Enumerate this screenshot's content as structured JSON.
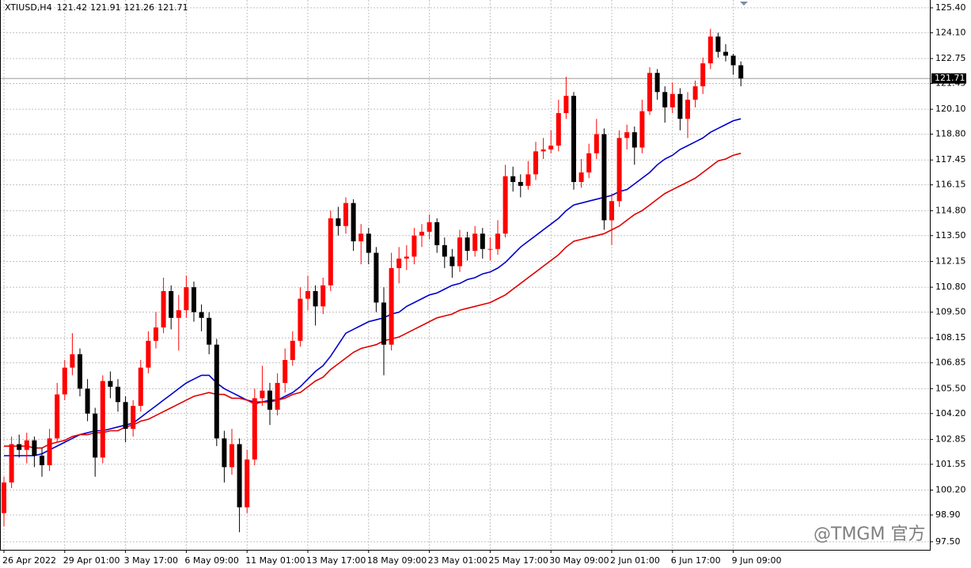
{
  "chart_data": {
    "type": "candlestick",
    "symbol": "XTIUSD,H4",
    "ohlc": [
      121.42,
      121.91,
      121.26,
      121.71
    ],
    "last_price": 121.71,
    "watermark": "@TMGM 官方",
    "up_color": "#ff0000",
    "down_color": "#000000",
    "grid": true,
    "ylim": [
      97.08,
      125.81
    ],
    "yticks": [
      {
        "value": 125.4,
        "label": "125.40"
      },
      {
        "value": 124.1,
        "label": "124.10"
      },
      {
        "value": 122.75,
        "label": "122.75"
      },
      {
        "value": 121.45,
        "label": "121.45"
      },
      {
        "value": 120.1,
        "label": "120.10"
      },
      {
        "value": 118.8,
        "label": "118.80"
      },
      {
        "value": 117.45,
        "label": "117.45"
      },
      {
        "value": 116.15,
        "label": "116.15"
      },
      {
        "value": 114.8,
        "label": "114.80"
      },
      {
        "value": 113.5,
        "label": "113.50"
      },
      {
        "value": 112.15,
        "label": "112.15"
      },
      {
        "value": 110.8,
        "label": "110.80"
      },
      {
        "value": 109.5,
        "label": "109.50"
      },
      {
        "value": 108.15,
        "label": "108.15"
      },
      {
        "value": 106.85,
        "label": "106.85"
      },
      {
        "value": 105.5,
        "label": "105.50"
      },
      {
        "value": 104.2,
        "label": "104.20"
      },
      {
        "value": 102.85,
        "label": "102.85"
      },
      {
        "value": 101.55,
        "label": "101.55"
      },
      {
        "value": 100.2,
        "label": "100.20"
      },
      {
        "value": 98.9,
        "label": "98.90"
      },
      {
        "value": 97.5,
        "label": "97.50"
      }
    ],
    "categories": [
      "26 Apr 2022",
      null,
      null,
      null,
      null,
      null,
      null,
      null,
      "29 Apr 01:00",
      null,
      null,
      null,
      null,
      null,
      null,
      null,
      "3 May 17:00",
      null,
      null,
      null,
      null,
      null,
      null,
      null,
      "6 May 09:00",
      null,
      null,
      null,
      null,
      null,
      null,
      null,
      "11 May 01:00",
      null,
      null,
      null,
      null,
      null,
      null,
      null,
      "13 May 17:00",
      null,
      null,
      null,
      null,
      null,
      null,
      null,
      "18 May 09:00",
      null,
      null,
      null,
      null,
      null,
      null,
      null,
      "23 May 01:00",
      null,
      null,
      null,
      null,
      null,
      null,
      null,
      "25 May 17:00",
      null,
      null,
      null,
      null,
      null,
      null,
      null,
      "30 May 09:00",
      null,
      null,
      null,
      null,
      null,
      null,
      null,
      "2 Jun 01:00",
      null,
      null,
      null,
      null,
      null,
      null,
      null,
      "6 Jun 17:00",
      null,
      null,
      null,
      null,
      null,
      null,
      null,
      "9 Jun 09:00",
      null
    ],
    "candles": [
      [
        99.0,
        100.9,
        98.3,
        100.6
      ],
      [
        100.6,
        103.0,
        100.3,
        102.6
      ],
      [
        102.6,
        103.1,
        101.9,
        102.3
      ],
      [
        102.3,
        103.2,
        101.6,
        102.8
      ],
      [
        102.8,
        103.0,
        101.4,
        102.0
      ],
      [
        102.0,
        102.4,
        100.9,
        101.5
      ],
      [
        101.5,
        103.4,
        101.2,
        102.9
      ],
      [
        102.9,
        105.8,
        102.7,
        105.2
      ],
      [
        105.2,
        107.0,
        104.9,
        106.6
      ],
      [
        106.6,
        108.4,
        106.2,
        107.3
      ],
      [
        107.3,
        107.6,
        105.1,
        105.5
      ],
      [
        105.5,
        106.0,
        103.8,
        104.2
      ],
      [
        104.2,
        104.5,
        100.9,
        101.9
      ],
      [
        101.9,
        106.2,
        101.6,
        105.9
      ],
      [
        105.9,
        106.4,
        105.0,
        105.6
      ],
      [
        105.6,
        106.0,
        104.3,
        104.8
      ],
      [
        104.8,
        105.1,
        102.7,
        103.4
      ],
      [
        103.4,
        104.9,
        103.0,
        104.6
      ],
      [
        104.6,
        107.0,
        104.3,
        106.6
      ],
      [
        106.6,
        108.5,
        106.3,
        108.0
      ],
      [
        108.0,
        109.5,
        107.6,
        108.7
      ],
      [
        108.7,
        111.3,
        108.4,
        110.6
      ],
      [
        110.6,
        110.9,
        108.6,
        109.2
      ],
      [
        109.2,
        110.4,
        107.5,
        109.6
      ],
      [
        109.6,
        111.4,
        109.2,
        110.8
      ],
      [
        110.8,
        111.1,
        109.0,
        109.5
      ],
      [
        109.5,
        109.9,
        108.5,
        109.2
      ],
      [
        109.2,
        109.5,
        107.3,
        107.8
      ],
      [
        107.8,
        108.1,
        102.5,
        102.9
      ],
      [
        102.9,
        103.3,
        100.6,
        101.4
      ],
      [
        101.4,
        103.4,
        101.0,
        102.6
      ],
      [
        102.6,
        102.9,
        98.0,
        99.3
      ],
      [
        99.3,
        102.3,
        99.0,
        101.8
      ],
      [
        101.8,
        105.5,
        101.5,
        105.0
      ],
      [
        105.0,
        106.7,
        104.6,
        105.4
      ],
      [
        105.4,
        105.8,
        103.6,
        104.4
      ],
      [
        104.4,
        106.3,
        104.1,
        105.8
      ],
      [
        105.8,
        107.6,
        105.3,
        107.0
      ],
      [
        107.0,
        108.5,
        106.7,
        108.0
      ],
      [
        108.0,
        110.8,
        107.7,
        110.2
      ],
      [
        110.2,
        111.4,
        109.6,
        110.6
      ],
      [
        110.6,
        110.9,
        108.8,
        109.8
      ],
      [
        109.8,
        111.3,
        109.4,
        110.9
      ],
      [
        110.9,
        114.8,
        110.6,
        114.4
      ],
      [
        114.4,
        115.0,
        113.5,
        114.0
      ],
      [
        114.0,
        115.5,
        113.6,
        115.2
      ],
      [
        115.2,
        115.4,
        112.7,
        113.2
      ],
      [
        113.2,
        114.1,
        112.0,
        113.6
      ],
      [
        113.6,
        113.9,
        112.0,
        112.6
      ],
      [
        112.6,
        112.9,
        109.5,
        110.0
      ],
      [
        110.0,
        110.8,
        106.2,
        107.8
      ],
      [
        107.8,
        112.6,
        107.5,
        111.8
      ],
      [
        111.8,
        112.9,
        111.0,
        112.3
      ],
      [
        112.3,
        113.0,
        111.7,
        112.4
      ],
      [
        112.4,
        113.9,
        112.0,
        113.5
      ],
      [
        113.5,
        114.1,
        112.9,
        113.7
      ],
      [
        113.7,
        114.6,
        113.3,
        114.2
      ],
      [
        114.2,
        114.4,
        112.6,
        113.0
      ],
      [
        113.0,
        113.4,
        111.8,
        112.4
      ],
      [
        112.4,
        112.8,
        111.3,
        111.9
      ],
      [
        111.9,
        113.8,
        111.6,
        113.4
      ],
      [
        113.4,
        113.7,
        112.2,
        112.7
      ],
      [
        112.7,
        114.0,
        112.4,
        113.6
      ],
      [
        113.6,
        113.9,
        112.3,
        112.8
      ],
      [
        112.8,
        113.4,
        112.2,
        112.8
      ],
      [
        112.8,
        114.3,
        112.5,
        113.6
      ],
      [
        113.6,
        117.2,
        113.4,
        116.6
      ],
      [
        116.6,
        117.1,
        115.8,
        116.3
      ],
      [
        116.3,
        116.7,
        115.5,
        116.1
      ],
      [
        116.1,
        117.4,
        115.9,
        116.7
      ],
      [
        116.7,
        118.4,
        116.4,
        117.9
      ],
      [
        117.9,
        118.6,
        117.5,
        118.0
      ],
      [
        118.0,
        119.0,
        117.8,
        118.2
      ],
      [
        118.2,
        120.6,
        117.9,
        119.9
      ],
      [
        119.9,
        121.8,
        119.6,
        120.8
      ],
      [
        120.8,
        121.0,
        115.9,
        116.3
      ],
      [
        116.3,
        117.5,
        116.0,
        116.8
      ],
      [
        116.8,
        118.3,
        116.5,
        117.8
      ],
      [
        117.8,
        119.6,
        117.5,
        118.8
      ],
      [
        118.8,
        119.1,
        113.8,
        114.3
      ],
      [
        114.3,
        115.7,
        113.0,
        115.3
      ],
      [
        115.3,
        119.0,
        115.0,
        118.6
      ],
      [
        118.6,
        119.3,
        118.0,
        118.9
      ],
      [
        118.9,
        119.2,
        117.2,
        118.1
      ],
      [
        118.1,
        120.6,
        117.8,
        120.0
      ],
      [
        120.0,
        122.3,
        119.8,
        122.0
      ],
      [
        122.0,
        122.2,
        120.6,
        121.0
      ],
      [
        121.0,
        121.3,
        119.4,
        120.2
      ],
      [
        120.2,
        121.5,
        119.9,
        120.9
      ],
      [
        120.9,
        121.2,
        119.0,
        119.6
      ],
      [
        119.6,
        121.0,
        118.6,
        120.6
      ],
      [
        120.6,
        121.6,
        120.2,
        121.3
      ],
      [
        121.3,
        122.8,
        120.9,
        122.5
      ],
      [
        122.5,
        124.3,
        122.2,
        123.9
      ],
      [
        123.9,
        124.1,
        122.8,
        123.1
      ],
      [
        123.1,
        123.5,
        122.6,
        122.9
      ],
      [
        122.9,
        123.0,
        121.9,
        122.4
      ],
      [
        122.4,
        122.6,
        121.3,
        121.71
      ]
    ],
    "lines": [
      {
        "color": "#0000cc",
        "values": [
          102.0,
          102.0,
          102.0,
          102.0,
          102.0,
          102.1,
          102.3,
          102.5,
          102.7,
          102.9,
          103.1,
          103.2,
          103.3,
          103.3,
          103.4,
          103.5,
          103.6,
          103.7,
          104.0,
          104.3,
          104.6,
          104.9,
          105.2,
          105.5,
          105.8,
          106.0,
          106.2,
          106.2,
          105.8,
          105.5,
          105.3,
          105.1,
          104.9,
          104.8,
          104.8,
          104.9,
          104.9,
          105.1,
          105.3,
          105.6,
          106.0,
          106.4,
          106.7,
          107.2,
          107.8,
          108.4,
          108.6,
          108.8,
          109.0,
          109.1,
          109.2,
          109.4,
          109.5,
          109.8,
          110.0,
          110.2,
          110.4,
          110.5,
          110.7,
          110.9,
          111.0,
          111.2,
          111.3,
          111.5,
          111.6,
          111.8,
          112.1,
          112.5,
          112.9,
          113.2,
          113.5,
          113.8,
          114.1,
          114.4,
          114.8,
          115.1,
          115.2,
          115.3,
          115.4,
          115.5,
          115.6,
          115.8,
          115.9,
          116.2,
          116.5,
          116.8,
          117.2,
          117.5,
          117.7,
          118.0,
          118.2,
          118.4,
          118.6,
          118.9,
          119.1,
          119.3,
          119.5,
          119.6
        ]
      },
      {
        "color": "#e00000",
        "values": [
          102.5,
          102.5,
          102.5,
          102.5,
          102.4,
          102.4,
          102.6,
          102.7,
          102.8,
          103.0,
          103.1,
          103.1,
          103.2,
          103.2,
          103.3,
          103.3,
          103.5,
          103.6,
          103.8,
          103.9,
          104.1,
          104.3,
          104.5,
          104.7,
          104.9,
          105.1,
          105.2,
          105.3,
          105.2,
          105.2,
          105.0,
          105.0,
          104.9,
          104.7,
          104.8,
          104.8,
          104.9,
          105.0,
          105.2,
          105.3,
          105.6,
          105.9,
          106.1,
          106.5,
          106.8,
          107.1,
          107.4,
          107.6,
          107.7,
          107.8,
          108.0,
          108.1,
          108.2,
          108.4,
          108.6,
          108.8,
          109.0,
          109.2,
          109.3,
          109.4,
          109.6,
          109.7,
          109.8,
          109.9,
          110.0,
          110.2,
          110.4,
          110.7,
          111.0,
          111.3,
          111.6,
          111.9,
          112.2,
          112.5,
          112.9,
          113.2,
          113.3,
          113.4,
          113.5,
          113.6,
          113.8,
          114.0,
          114.3,
          114.6,
          114.8,
          115.1,
          115.4,
          115.7,
          115.9,
          116.1,
          116.3,
          116.5,
          116.8,
          117.1,
          117.4,
          117.5,
          117.7,
          117.8
        ]
      }
    ]
  }
}
